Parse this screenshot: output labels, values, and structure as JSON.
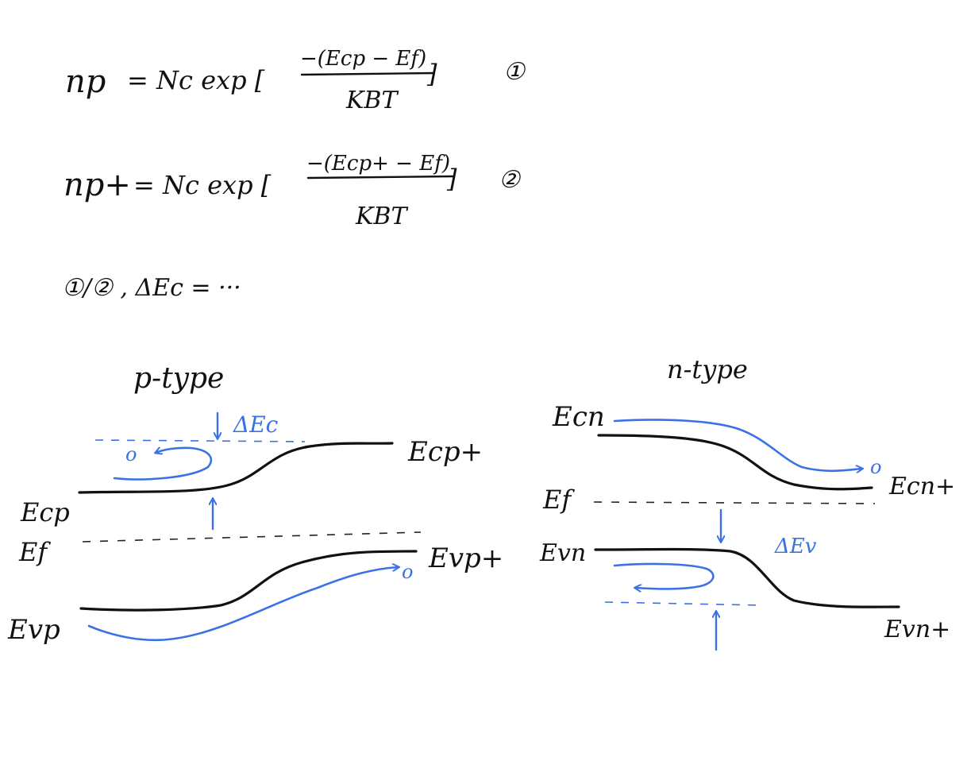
{
  "colors": {
    "ink": "#111111",
    "accent": "#3a72e6",
    "background": "#ffffff"
  },
  "equations": {
    "eq1": {
      "lhs": "np",
      "rhs_prefix": "= Nc  exp [",
      "numerator": "−(Ecp − Ef)",
      "denominator": "KBT",
      "close": "]",
      "tag": "①"
    },
    "eq2": {
      "lhs": "np+",
      "rhs_prefix": "= Nc  exp [",
      "numerator": "−(Ecp+ − Ef)",
      "denominator": "KBT",
      "close": "]",
      "tag": "②"
    },
    "ratio": {
      "text": "①/②  , ΔEc = ···"
    }
  },
  "p_type": {
    "title": "p-type",
    "labels": {
      "ecp": "Ecp",
      "ef": "Ef",
      "evp": "Evp",
      "ecp_plus": "Ecp+",
      "evp_plus": "Evp+",
      "delta_ec": "ΔEc",
      "carrier_top": "o",
      "carrier_bottom": "o"
    }
  },
  "n_type": {
    "title": "n-type",
    "labels": {
      "ecn": "Ecn",
      "ef": "Ef",
      "evn": "Evn",
      "ecn_plus": "Ecn+",
      "evn_plus": "Evn+",
      "delta_ev": "ΔEv",
      "carrier_top": "o"
    }
  }
}
